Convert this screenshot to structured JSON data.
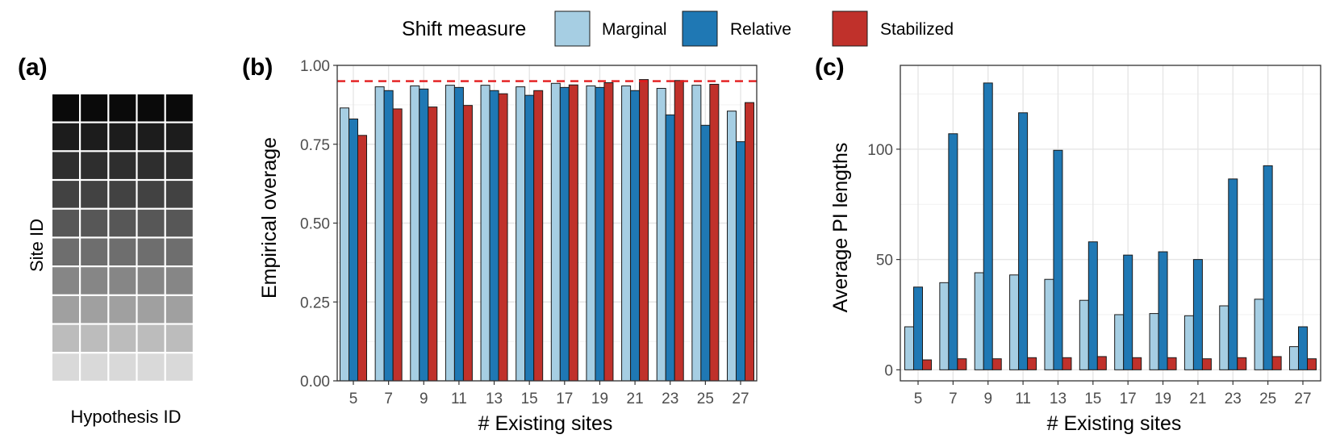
{
  "legend": {
    "title": "Shift measure",
    "items": [
      {
        "label": "Marginal",
        "color": "#a6cee3"
      },
      {
        "label": "Relative",
        "color": "#1f78b4"
      },
      {
        "label": "Stabilized",
        "color": "#c0312b"
      }
    ]
  },
  "panel_a": {
    "letter": "(a)",
    "xlabel": "Hypothesis ID",
    "ylabel": "Site ID",
    "n_cols": 5,
    "n_rows": 10,
    "row_shades": [
      "#0a0a0a",
      "#1c1c1c",
      "#2e2e2e",
      "#424242",
      "#575757",
      "#6e6e6e",
      "#868686",
      "#a0a0a0",
      "#bcbcbc",
      "#d9d9d9"
    ]
  },
  "chart_data": [
    {
      "panel": "(b)",
      "type": "bar",
      "xlabel": "# Existing sites",
      "ylabel": "Empirical overage",
      "categories": [
        "5",
        "7",
        "9",
        "11",
        "13",
        "15",
        "17",
        "19",
        "21",
        "23",
        "25",
        "27"
      ],
      "ylim": [
        0,
        1
      ],
      "yticks": [
        "0.00",
        "0.25",
        "0.50",
        "0.75",
        "1.00"
      ],
      "reference_line": {
        "y": 0.95,
        "color": "#e41a1c",
        "style": "dashed"
      },
      "series": [
        {
          "name": "Marginal",
          "values": [
            0.865,
            0.932,
            0.935,
            0.937,
            0.937,
            0.932,
            0.943,
            0.935,
            0.935,
            0.927,
            0.937,
            0.855
          ]
        },
        {
          "name": "Relative",
          "values": [
            0.83,
            0.92,
            0.925,
            0.93,
            0.92,
            0.905,
            0.93,
            0.93,
            0.92,
            0.843,
            0.81,
            0.758
          ]
        },
        {
          "name": "Stabilized",
          "values": [
            0.778,
            0.862,
            0.868,
            0.873,
            0.91,
            0.92,
            0.938,
            0.945,
            0.955,
            0.952,
            0.94,
            0.882
          ]
        }
      ]
    },
    {
      "panel": "(c)",
      "type": "bar",
      "xlabel": "# Existing sites",
      "ylabel": "Average PI lengths",
      "categories": [
        "5",
        "7",
        "9",
        "11",
        "13",
        "15",
        "17",
        "19",
        "21",
        "23",
        "25",
        "27"
      ],
      "ylim": [
        -5,
        138
      ],
      "yticks": [
        "0",
        "50",
        "100"
      ],
      "series": [
        {
          "name": "Marginal",
          "values": [
            19.5,
            39.5,
            44.0,
            43.0,
            41.0,
            31.5,
            25.0,
            25.5,
            24.5,
            29.0,
            32.0,
            10.5
          ]
        },
        {
          "name": "Relative",
          "values": [
            37.5,
            107.0,
            130.0,
            116.5,
            99.5,
            58.0,
            52.0,
            53.5,
            50.0,
            86.5,
            92.5,
            19.5
          ]
        },
        {
          "name": "Stabilized",
          "values": [
            4.5,
            5.0,
            5.0,
            5.5,
            5.5,
            6.0,
            5.5,
            5.5,
            5.0,
            5.5,
            6.0,
            5.0
          ]
        }
      ]
    }
  ]
}
